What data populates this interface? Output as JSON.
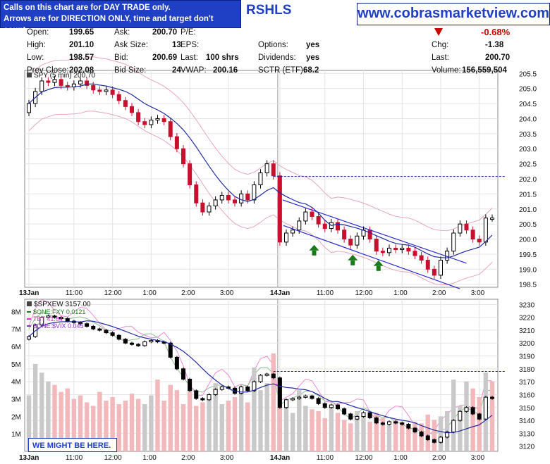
{
  "header": {
    "notice_line1": "Calls on this chart are for DAY TRADE only.",
    "notice_line2": "Arrows are for DIRECTION ONLY, time and target don't count.",
    "symbol": "RSHLS",
    "website": "www.cobrasmarketview.com",
    "change_pct": "-0.68%"
  },
  "quote": {
    "open_label": "Open:",
    "open": "199.65",
    "high_label": "High:",
    "high": "201.10",
    "low_label": "Low:",
    "low": "198.57",
    "prev_close_label": "Prev Close:",
    "prev_close": "202.08",
    "ask_label": "Ask:",
    "ask": "200.70",
    "ask_size_label": "Ask Size:",
    "ask_size": "13",
    "bid_label": "Bid:",
    "bid": "200.69",
    "bid_size_label": "Bid Size:",
    "bid_size": "24",
    "pe_label": "P/E:",
    "eps_label": "EPS:",
    "last_label": "Last:",
    "last_trade": "100 shrs",
    "vwap_label": "VWAP:",
    "vwap": "200.16",
    "options_label": "Options:",
    "options": "yes",
    "dividends_label": "Dividends:",
    "dividends": "yes",
    "sctr_label": "SCTR (ETF):",
    "sctr": "68.2",
    "chg_label": "Chg:",
    "chg": "-1.38",
    "last2_label": "Last:",
    "last_price": "200.70",
    "volume_label": "Volume:",
    "volume": "156,559,504"
  },
  "annotation": "WE MIGHT BE HERE.",
  "chart_data": [
    {
      "type": "line",
      "title": "SPY (5 min) 200.70",
      "x_tick_labels": [
        "13Jan",
        "11:00",
        "12:00",
        "1:00",
        "2:00",
        "3:00",
        "14Jan",
        "11:00",
        "12:00",
        "1:00",
        "2:00",
        "3:00"
      ],
      "y_tick_labels": [
        "205.5",
        "205.0",
        "204.5",
        "204.0",
        "203.5",
        "203.0",
        "202.5",
        "202.0",
        "201.5",
        "201.0",
        "200.5",
        "200.0",
        "199.5",
        "199.0",
        "198.5"
      ],
      "ylim": [
        198.4,
        205.6
      ],
      "reference_line": 202.08,
      "series": [
        {
          "values": [
            204.5,
            204.9,
            205.25,
            205.2,
            205.3,
            205.1,
            205.05,
            205.15,
            205.25,
            205.1,
            204.95,
            204.9,
            204.95,
            204.8,
            204.6,
            204.4,
            204.2,
            203.9,
            203.8,
            203.95,
            204.0,
            203.9,
            203.4,
            203.0,
            202.5,
            201.8,
            201.2,
            200.9,
            201.1,
            201.3,
            201.45,
            201.3,
            201.2,
            201.5,
            201.3,
            201.8,
            202.2,
            202.5,
            202.1,
            199.9,
            200.2,
            200.3,
            200.6,
            200.9,
            200.75,
            200.5,
            200.35,
            200.55,
            200.3,
            200.0,
            199.8,
            200.1,
            200.3,
            200.0,
            199.6,
            199.55,
            199.7,
            199.65,
            199.7,
            199.6,
            199.45,
            199.3,
            199.0,
            198.8,
            199.3,
            199.6,
            200.2,
            200.5,
            200.3,
            200.0,
            199.9,
            200.7,
            200.7
          ]
        }
      ]
    },
    {
      "type": "bar",
      "title": "$SPXEW 3157.00",
      "legend": [
        "$ONE:FXY 0.0121",
        "TBT 41.64",
        "$ONE:$VIX 0.045"
      ],
      "y_tick_labels": [
        "3230",
        "3220",
        "3210",
        "3200",
        "3190",
        "3180",
        "3170",
        "3160",
        "3150",
        "3140",
        "3130",
        "3120"
      ],
      "volume_tick_labels": [
        "8M",
        "7M",
        "6M",
        "5M",
        "4M",
        "3M",
        "2M",
        "1M"
      ],
      "ylim": [
        3116,
        3234
      ],
      "reference_line": 3178,
      "series": [
        {
          "values": [
            3205,
            3214,
            3220,
            3221,
            3220,
            3219,
            3217,
            3216,
            3215,
            3213,
            3211,
            3210,
            3208,
            3206,
            3203,
            3200,
            3199,
            3198,
            3201,
            3202,
            3201,
            3200,
            3189,
            3180,
            3172,
            3163,
            3157,
            3156,
            3160,
            3164,
            3166,
            3165,
            3161,
            3166,
            3163,
            3170,
            3175,
            3176,
            3173,
            3150,
            3156,
            3157,
            3158,
            3159,
            3157,
            3153,
            3150,
            3152,
            3149,
            3145,
            3141,
            3143,
            3146,
            3142,
            3138,
            3137,
            3139,
            3138,
            3137,
            3134,
            3131,
            3128,
            3125,
            3123,
            3127,
            3131,
            3140,
            3147,
            3150,
            3145,
            3141,
            3158,
            3157
          ]
        }
      ],
      "volume_millions": [
        3.2,
        5.0,
        4.5,
        4.0,
        3.8,
        3.4,
        3.6,
        3.0,
        3.2,
        2.8,
        2.6,
        3.4,
        2.9,
        3.1,
        2.7,
        2.9,
        3.3,
        3.0,
        2.7,
        3.2,
        4.1,
        2.9,
        3.8,
        3.5,
        2.7,
        3.4,
        2.6,
        2.8,
        3.1,
        3.9,
        2.7,
        2.9,
        3.1,
        3.6,
        2.8,
        4.8,
        3.5,
        3.9,
        5.6,
        4.0,
        3.0,
        2.2,
        3.5,
        2.6,
        2.4,
        2.3,
        1.9,
        2.6,
        2.2,
        1.8,
        1.6,
        2.3,
        2.1,
        1.7,
        2.2,
        1.9,
        1.5,
        1.8,
        1.7,
        1.5,
        1.7,
        1.6,
        2.1,
        1.8,
        2.0,
        2.3,
        4.1,
        2.6,
        4.0,
        3.6,
        3.1,
        4.5,
        4.0
      ]
    }
  ]
}
